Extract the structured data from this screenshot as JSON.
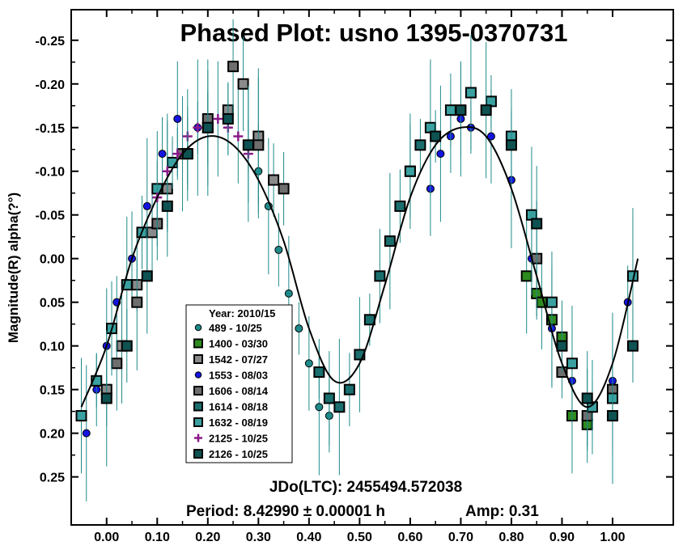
{
  "chart_data": {
    "type": "scatter",
    "title": "Phased Plot: usno 1395-0370731",
    "xlabel": "",
    "ylabel": "Magnitude(R) alpha(?°)",
    "xlim": [
      -0.07,
      1.12
    ],
    "ylim": [
      -0.285,
      0.305
    ],
    "y_inverted": true,
    "x_ticks": [
      0.0,
      0.1,
      0.2,
      0.3,
      0.4,
      0.5,
      0.6,
      0.7,
      0.8,
      0.9,
      1.0
    ],
    "x_tick_labels": [
      "0.00",
      "0.10",
      "0.20",
      "0.30",
      "0.40",
      "0.50",
      "0.60",
      "0.70",
      "0.80",
      "0.90",
      "1.00"
    ],
    "y_ticks": [
      -0.25,
      -0.2,
      -0.15,
      -0.1,
      -0.05,
      0.0,
      0.05,
      0.1,
      0.15,
      0.2,
      0.25
    ],
    "y_tick_labels": [
      "-0.25",
      "-0.20",
      "-0.15",
      "-0.10",
      "-0.05",
      "0.00",
      "0.05",
      "0.10",
      "0.15",
      "0.20",
      "0.25"
    ],
    "grid": false,
    "legend_position": "lower-left",
    "legend_title": "Year: 2010/15",
    "annotations": [
      "JDo(LTC): 2455494.572038",
      "Period: 8.42990 ± 0.00001 h",
      "Amp: 0.31"
    ],
    "fit_curve": {
      "x": [
        -0.05,
        0.0,
        0.05,
        0.1,
        0.15,
        0.2,
        0.25,
        0.3,
        0.35,
        0.4,
        0.45,
        0.5,
        0.55,
        0.6,
        0.65,
        0.7,
        0.75,
        0.8,
        0.85,
        0.9,
        0.95,
        1.0,
        1.05
      ],
      "y": [
        0.17,
        0.1,
        0.0,
        -0.07,
        -0.12,
        -0.14,
        -0.13,
        -0.09,
        -0.02,
        0.08,
        0.14,
        0.12,
        0.03,
        -0.07,
        -0.13,
        -0.15,
        -0.14,
        -0.08,
        0.02,
        0.12,
        0.17,
        0.12,
        0.0
      ]
    },
    "series": [
      {
        "name": "489 - 10/25",
        "marker": "circle",
        "color": "#1f8a8a",
        "x": [
          0.28,
          0.3,
          0.32,
          0.34,
          0.36,
          0.38,
          0.4,
          0.42,
          0.44
        ],
        "y": [
          -0.13,
          -0.1,
          -0.06,
          -0.01,
          0.04,
          0.08,
          0.12,
          0.17,
          0.18
        ]
      },
      {
        "name": "1400 - 03/30",
        "marker": "square",
        "color": "#2e8b1e",
        "x": [
          0.83,
          0.85,
          0.86,
          0.88,
          0.9,
          0.92,
          0.95
        ],
        "y": [
          0.02,
          0.04,
          0.05,
          0.07,
          0.09,
          0.18,
          0.19
        ]
      },
      {
        "name": "1542 - 07/27",
        "marker": "square",
        "color": "#8a8a8a",
        "x": [
          0.0,
          0.03,
          0.06,
          0.09,
          0.12,
          0.16,
          0.2,
          0.24,
          0.27,
          0.3,
          0.33
        ],
        "y": [
          0.15,
          0.1,
          0.03,
          -0.03,
          -0.08,
          -0.12,
          -0.15,
          -0.17,
          -0.2,
          -0.14,
          -0.09
        ]
      },
      {
        "name": "1553 - 08/03",
        "marker": "circle",
        "color": "#1414e0",
        "x": [
          -0.04,
          -0.02,
          0.0,
          0.02,
          0.05,
          0.08,
          0.11,
          0.14,
          0.18,
          0.64,
          0.66,
          0.68,
          0.7,
          0.72,
          0.76,
          0.8,
          0.84,
          0.88,
          0.92,
          0.96,
          1.0,
          1.03
        ],
        "y": [
          0.2,
          0.15,
          0.1,
          0.05,
          0.0,
          -0.06,
          -0.12,
          -0.16,
          -0.15,
          -0.08,
          -0.12,
          -0.14,
          -0.16,
          -0.15,
          -0.14,
          -0.09,
          0.0,
          0.08,
          0.14,
          0.17,
          0.14,
          0.05
        ]
      },
      {
        "name": "1606 - 08/14",
        "marker": "square",
        "color": "#6e6e6e",
        "x": [
          0.02,
          0.06,
          0.1,
          0.15,
          0.2,
          0.25,
          0.3,
          0.35,
          0.85,
          0.9,
          0.95,
          1.0
        ],
        "y": [
          0.12,
          0.05,
          -0.04,
          -0.12,
          -0.16,
          -0.22,
          -0.13,
          -0.08,
          0.0,
          0.13,
          0.18,
          0.15
        ]
      },
      {
        "name": "1614 - 08/18",
        "marker": "square",
        "color": "#1a6e6e",
        "x": [
          0.42,
          0.44,
          0.46,
          0.48,
          0.5,
          0.52,
          0.54,
          0.56,
          0.58,
          0.6,
          0.62
        ],
        "y": [
          0.13,
          0.16,
          0.17,
          0.15,
          0.11,
          0.07,
          0.02,
          -0.02,
          -0.06,
          -0.1,
          -0.13
        ]
      },
      {
        "name": "1632 - 08/19",
        "marker": "square",
        "color": "#3aa0a0",
        "x": [
          -0.05,
          -0.02,
          0.01,
          0.04,
          0.07,
          0.1,
          0.13,
          0.6,
          0.64,
          0.68,
          0.72,
          0.76,
          0.8,
          0.84,
          0.88,
          0.92,
          0.96,
          1.0,
          1.04
        ],
        "y": [
          0.18,
          0.14,
          0.08,
          0.03,
          -0.03,
          -0.08,
          -0.11,
          -0.1,
          -0.15,
          -0.17,
          -0.19,
          -0.18,
          -0.14,
          -0.05,
          0.05,
          0.12,
          0.17,
          0.16,
          0.02
        ]
      },
      {
        "name": "2125 - 10/25",
        "marker": "plus",
        "color": "#8a1a8a",
        "x": [
          0.1,
          0.12,
          0.14,
          0.16,
          0.18,
          0.2,
          0.22,
          0.24,
          0.26,
          0.28
        ],
        "y": [
          -0.07,
          -0.1,
          -0.12,
          -0.14,
          -0.15,
          -0.15,
          -0.16,
          -0.15,
          -0.14,
          -0.12
        ]
      },
      {
        "name": "2126 - 10/25",
        "marker": "square",
        "color": "#0e5252",
        "x": [
          0.0,
          0.04,
          0.08,
          0.12,
          0.16,
          0.2,
          0.24,
          0.28,
          0.65,
          0.7,
          0.75,
          0.8,
          0.85,
          0.9,
          0.95,
          1.0,
          1.04
        ],
        "y": [
          0.16,
          0.1,
          0.02,
          -0.06,
          -0.12,
          -0.15,
          -0.16,
          -0.13,
          -0.14,
          -0.17,
          -0.17,
          -0.13,
          -0.04,
          0.1,
          0.16,
          0.18,
          0.1
        ]
      }
    ]
  }
}
